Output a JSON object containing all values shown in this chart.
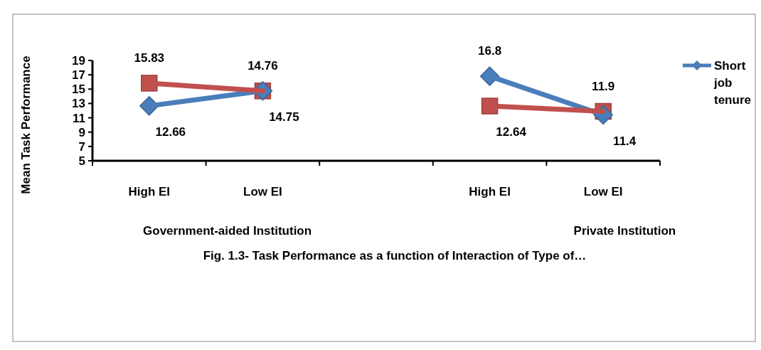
{
  "chart_data": {
    "type": "line",
    "title": "Fig. 1.3- Task Performance  as a function  of Interaction of Type of…",
    "ylabel": "Mean  Task Performance",
    "categories": [
      "High EI",
      "Low EI",
      null,
      "High EI",
      "Low EI"
    ],
    "series": [
      {
        "name": "Short job tenure",
        "color": "#4a7ebb",
        "marker": "diamond",
        "values": [
          12.66,
          14.76,
          null,
          16.8,
          11.4
        ]
      },
      {
        "color": "#c0504d",
        "marker": "square",
        "values": [
          15.83,
          14.75,
          null,
          12.64,
          11.9
        ]
      }
    ],
    "ylim": [
      5,
      19
    ],
    "yticks": [
      5,
      7,
      9,
      11,
      13,
      15,
      17,
      19
    ],
    "grid": false,
    "legend": "right",
    "data_labels": true,
    "annotations": [
      "Government-aided Institution",
      "Private Institution"
    ]
  }
}
